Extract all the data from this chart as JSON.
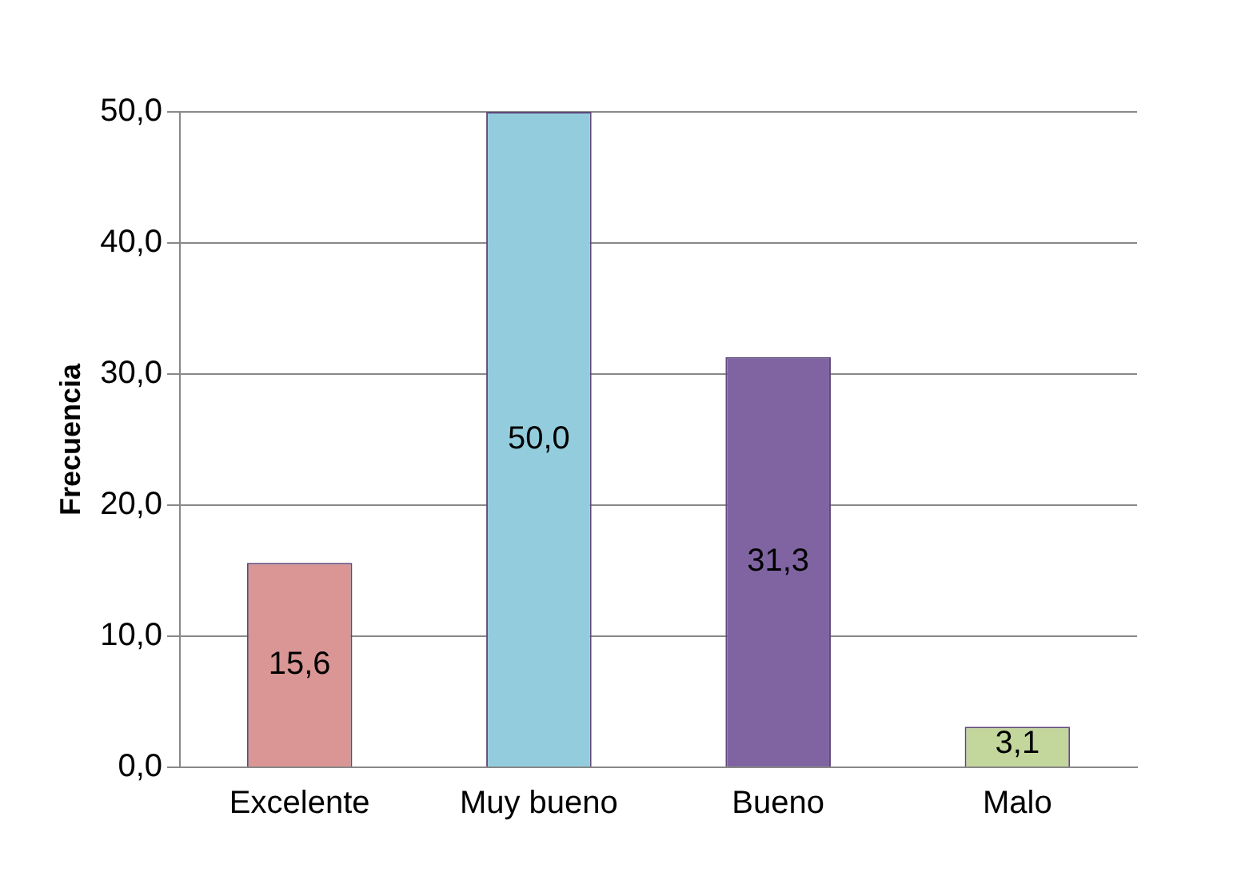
{
  "chart_data": {
    "type": "bar",
    "ylabel": "Frecuencia",
    "categories": [
      "Excelente",
      "Muy bueno",
      "Bueno",
      "Malo"
    ],
    "values": [
      15.6,
      50.0,
      31.3,
      3.1
    ],
    "colors": [
      "#d99694",
      "#93cddd",
      "#8064a2",
      "#c3d69b"
    ],
    "value_labels": [
      "15,6",
      "50,0",
      "31,3",
      "3,1"
    ],
    "ylim": [
      0,
      50
    ],
    "yticks": [
      {
        "value": 0,
        "label": "0,0"
      },
      {
        "value": 10,
        "label": "10,0"
      },
      {
        "value": 20,
        "label": "20,0"
      },
      {
        "value": 30,
        "label": "30,0"
      },
      {
        "value": 40,
        "label": "40,0"
      },
      {
        "value": 50,
        "label": "50,0"
      }
    ],
    "grid": "y",
    "legend": false
  }
}
